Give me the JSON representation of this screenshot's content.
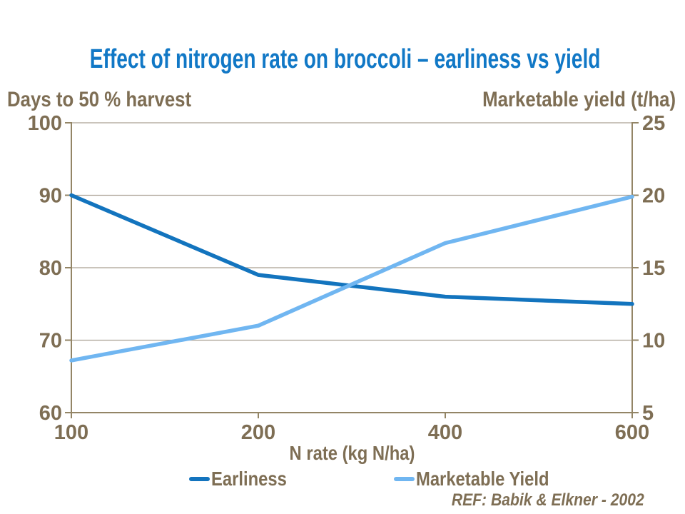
{
  "reference": "REF: Babik & Elkner - 2002",
  "colors": {
    "background": "#FFFFFF",
    "title": "#1178C6",
    "text": "#7E6E54",
    "axis": "#938566",
    "grid": "#AAA092",
    "earliness_line": "#1374BE",
    "yield_line": "#70B6F1"
  },
  "chart_data": {
    "type": "line",
    "title": "Effect of nitrogen rate on broccoli – earliness vs yield",
    "x": [
      100,
      200,
      400,
      600
    ],
    "x_tick_labels": [
      "100",
      "200",
      "400",
      "600"
    ],
    "x_spacing": "categorical-equal",
    "xlabel": "N rate (kg N/ha)",
    "left_axis": {
      "label": "Days to 50 % harvest",
      "min": 60,
      "max": 100,
      "ticks": [
        100,
        90,
        80,
        70,
        60
      ]
    },
    "right_axis": {
      "label": "Marketable yield (t/ha)",
      "min": 5,
      "max": 25,
      "ticks": [
        25,
        20,
        15,
        10,
        5
      ]
    },
    "series": [
      {
        "name": "Earliness",
        "axis": "left",
        "color": "#1374BE",
        "values": [
          90,
          79,
          76,
          75
        ]
      },
      {
        "name": "Marketable Yield",
        "axis": "right",
        "color": "#70B6F1",
        "values": [
          8.6,
          11,
          16.7,
          19.9
        ]
      }
    ],
    "grid": true,
    "legend_position": "bottom"
  }
}
